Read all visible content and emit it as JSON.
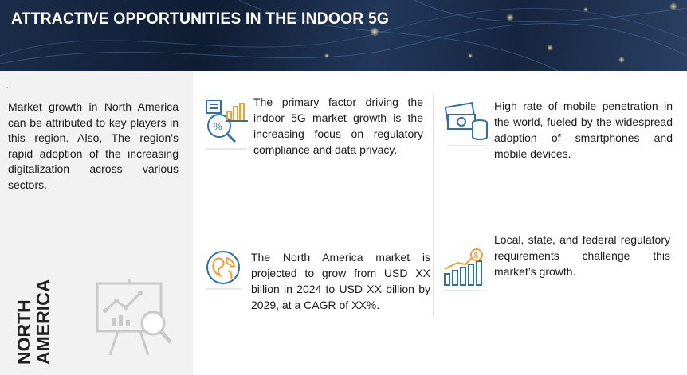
{
  "banner": {
    "title": "ATTRACTIVE OPPORTUNITIES IN THE INDOOR 5G"
  },
  "region": {
    "marker": "-",
    "name_line1": "NORTH",
    "name_line2": "AMERICA",
    "description": "Market growth in North America can be attributed to key players in this region. Also, The region's rapid adoption of the increasing digitalization across various sectors."
  },
  "cards": [
    {
      "icon": "analytics-icon",
      "text": "The primary factor driving the indoor 5G market growth is the increasing focus on regulatory compliance and data privacy."
    },
    {
      "icon": "money-stack-icon",
      "text": "High rate of mobile penetration in the world, fueled by the widespread adoption of smartphones and mobile devices."
    },
    {
      "icon": "globe-icon",
      "text": "The North America market is projected to grow from USD XX billion in 2024 to USD  XX billion by 2029, at a CAGR of XX%."
    },
    {
      "icon": "dollar-growth-chart-icon",
      "text": "Local, state, and federal regulatory requirements challenge this market’s growth."
    }
  ],
  "colors": {
    "banner_dark": "#14233c",
    "icon_blue": "#2e6fae",
    "icon_orange": "#f0a030",
    "panel_gray": "#f2f2f2"
  }
}
